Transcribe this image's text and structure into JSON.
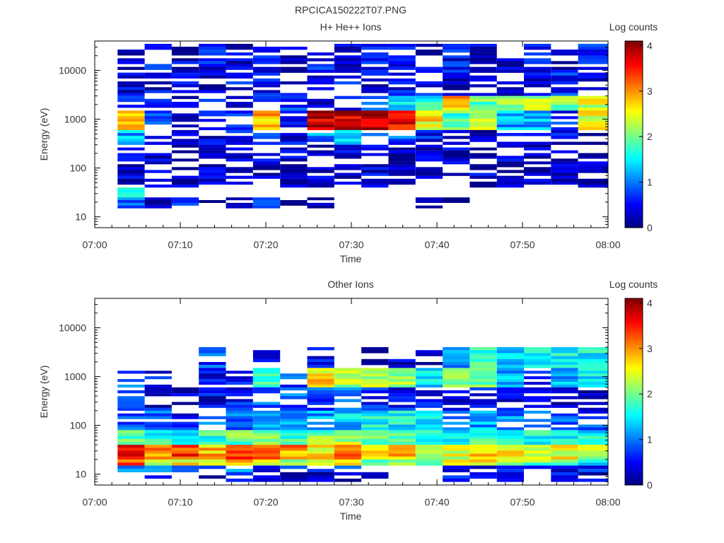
{
  "figure_title": "RPCICA150222T07.PNG",
  "colors": {
    "colormap": [
      "#00007f",
      "#0000ff",
      "#007fff",
      "#00ffff",
      "#7fff7f",
      "#ffff00",
      "#ff7f00",
      "#ff0000",
      "#7f0000"
    ]
  },
  "chart_data": [
    {
      "type": "heatmap",
      "title": "H+ He++ Ions",
      "xlabel": "Time",
      "ylabel": "Energy (eV)",
      "colorbar_label": "Log counts",
      "colorbar_range": [
        0,
        4.1
      ],
      "colorbar_ticks": [
        "0",
        "1",
        "2",
        "3",
        "4"
      ],
      "xticks": [
        "07:00",
        "07:10",
        "07:20",
        "07:30",
        "07:40",
        "07:50",
        "08:00"
      ],
      "yticks": [
        "10",
        "100",
        "1000",
        "10000"
      ],
      "ylim": [
        6,
        40000
      ],
      "yscale": "log",
      "time_bins": [
        "07:02:40",
        "07:05:50",
        "07:09:00",
        "07:12:10",
        "07:15:20",
        "07:18:30",
        "07:21:40",
        "07:24:50",
        "07:28:00",
        "07:31:10",
        "07:34:20",
        "07:37:30",
        "07:40:40",
        "07:43:50",
        "07:47:00",
        "07:50:10",
        "07:53:20",
        "07:56:30",
        "08:00:00"
      ],
      "bands": [
        {
          "e_low": 9000,
          "e_high": 35000,
          "values": [
            0.3,
            0.5,
            0.3,
            0.5,
            0.3,
            0.4,
            0.3,
            0.6,
            0.3,
            0.5,
            0.4,
            0.3,
            0.5,
            0.3,
            0.4,
            0.6,
            0.3,
            0.5
          ]
        },
        {
          "e_low": 3000,
          "e_high": 9000,
          "values": [
            0.4,
            0.4,
            0.6,
            0.3,
            0.5,
            0.4,
            0.3,
            0.4,
            0.6,
            0.3,
            0.4,
            0.5,
            0.3,
            0.4,
            0.5,
            0.3,
            0.6,
            0.4
          ]
        },
        {
          "e_low": 1500,
          "e_high": 3000,
          "values": [
            0.6,
            0.5,
            0.4,
            1.0,
            0.5,
            1.0,
            0.6,
            0.5,
            0.6,
            0.7,
            1.3,
            1.6,
            2.8,
            1.9,
            2.0,
            2.3,
            2.1,
            2.4
          ]
        },
        {
          "e_low": 600,
          "e_high": 1500,
          "values": [
            2.9,
            0.6,
            0.5,
            0.6,
            0.6,
            2.8,
            0.7,
            3.8,
            3.8,
            3.9,
            3.7,
            2.6,
            1.8,
            2.4,
            1.2,
            1.3,
            0.6,
            2.5
          ]
        },
        {
          "e_low": 300,
          "e_high": 600,
          "values": [
            1.2,
            0.5,
            0.4,
            0.3,
            0.5,
            0.6,
            0.4,
            1.0,
            1.2,
            0.9,
            0.8,
            0.5,
            0.4,
            0.3,
            0.4,
            0.3,
            0.4,
            0.3
          ]
        },
        {
          "e_low": 120,
          "e_high": 300,
          "values": [
            0.3,
            0.3,
            0.2,
            0.3,
            0.3,
            0.3,
            0.4,
            0.3,
            0.3,
            0.3,
            0.2,
            0.3,
            0.3,
            0.2,
            0.3,
            0.2,
            0.3,
            0.2
          ]
        },
        {
          "e_low": 40,
          "e_high": 120,
          "values": [
            0.3,
            0.2,
            0.2,
            0.3,
            0.3,
            0.2,
            0.2,
            0.3,
            0.2,
            0.3,
            0.3,
            0.2,
            0.2,
            0.3,
            0.2,
            0.2,
            0.2,
            0.2
          ]
        },
        {
          "e_low": 25,
          "e_high": 40,
          "values": [
            1.6,
            null,
            null,
            null,
            null,
            null,
            null,
            null,
            null,
            null,
            null,
            null,
            null,
            null,
            null,
            null,
            null,
            null
          ]
        },
        {
          "e_low": 15,
          "e_high": 25,
          "values": [
            0.8,
            0.2,
            0.6,
            0.3,
            0.5,
            0.6,
            0.1,
            0.2,
            null,
            null,
            null,
            0.3,
            0.2,
            null,
            null,
            null,
            null,
            null
          ]
        }
      ]
    },
    {
      "type": "heatmap",
      "title": "Other Ions",
      "xlabel": "Time",
      "ylabel": "Energy (eV)",
      "colorbar_label": "Log counts",
      "colorbar_range": [
        0,
        4.1
      ],
      "colorbar_ticks": [
        "0",
        "1",
        "2",
        "3",
        "4"
      ],
      "xticks": [
        "07:00",
        "07:10",
        "07:20",
        "07:30",
        "07:40",
        "07:50",
        "08:00"
      ],
      "yticks": [
        "10",
        "100",
        "1000",
        "10000"
      ],
      "ylim": [
        6,
        40000
      ],
      "yscale": "log",
      "time_bins": [
        "07:02:40",
        "07:05:50",
        "07:09:00",
        "07:12:10",
        "07:15:20",
        "07:18:30",
        "07:21:40",
        "07:24:50",
        "07:28:00",
        "07:31:10",
        "07:34:20",
        "07:37:30",
        "07:40:40",
        "07:43:50",
        "07:47:00",
        "07:50:10",
        "07:53:20",
        "07:56:30",
        "08:00:00"
      ],
      "bands": [
        {
          "e_low": 1500,
          "e_high": 4000,
          "values": [
            null,
            null,
            null,
            0.8,
            null,
            0.6,
            null,
            0.4,
            null,
            0.3,
            0.3,
            0.3,
            1.2,
            1.8,
            1.4,
            1.6,
            1.5,
            1.6
          ]
        },
        {
          "e_low": 600,
          "e_high": 1500,
          "values": [
            1.0,
            0.5,
            null,
            0.4,
            0.5,
            1.6,
            0.8,
            2.7,
            2.2,
            2.3,
            2.1,
            1.5,
            1.9,
            2.0,
            1.3,
            0.5,
            1.2,
            1.6
          ]
        },
        {
          "e_low": 200,
          "e_high": 600,
          "values": [
            0.6,
            0.4,
            0.3,
            0.4,
            0.5,
            1.0,
            0.9,
            0.7,
            0.8,
            0.6,
            0.5,
            0.4,
            0.3,
            0.4,
            0.3,
            0.4,
            0.4,
            0.3
          ]
        },
        {
          "e_low": 80,
          "e_high": 200,
          "values": [
            0.9,
            0.8,
            0.6,
            0.8,
            1.0,
            1.3,
            1.2,
            1.1,
            1.3,
            1.6,
            1.5,
            1.4,
            1.1,
            1.2,
            1.0,
            0.9,
            0.8,
            0.7
          ]
        },
        {
          "e_low": 40,
          "e_high": 80,
          "values": [
            1.9,
            1.6,
            1.4,
            1.7,
            1.9,
            2.0,
            1.8,
            2.0,
            2.3,
            2.1,
            2.0,
            1.8,
            1.6,
            1.7,
            1.5,
            1.6,
            1.4,
            1.5
          ]
        },
        {
          "e_low": 20,
          "e_high": 40,
          "values": [
            3.6,
            3.0,
            3.4,
            2.8,
            3.4,
            3.2,
            3.0,
            2.6,
            3.2,
            2.5,
            2.9,
            2.4,
            2.4,
            2.9,
            2.6,
            2.4,
            2.5,
            2.3
          ]
        },
        {
          "e_low": 15,
          "e_high": 20,
          "values": [
            3.3,
            2.4,
            2.6,
            2.5,
            2.8,
            2.6,
            2.3,
            2.6,
            2.7,
            2.0,
            2.3,
            1.9,
            2.4,
            2.5,
            2.2,
            2.0,
            1.8,
            1.6
          ]
        },
        {
          "e_low": 11,
          "e_high": 15,
          "values": [
            1.0,
            1.4,
            0.9,
            1.0,
            0.9,
            0.6,
            0.7,
            0.6,
            0.7,
            0.5,
            0.4,
            null,
            0.5,
            0.4,
            0.5,
            0.3,
            0.4,
            0.6
          ]
        },
        {
          "e_low": 7,
          "e_high": 11,
          "values": [
            null,
            0.2,
            null,
            0.2,
            0.3,
            0.3,
            0.2,
            0.2,
            0.3,
            0.2,
            null,
            null,
            0.7,
            0.3,
            0.2,
            null,
            0.4,
            0.3
          ]
        }
      ]
    }
  ]
}
